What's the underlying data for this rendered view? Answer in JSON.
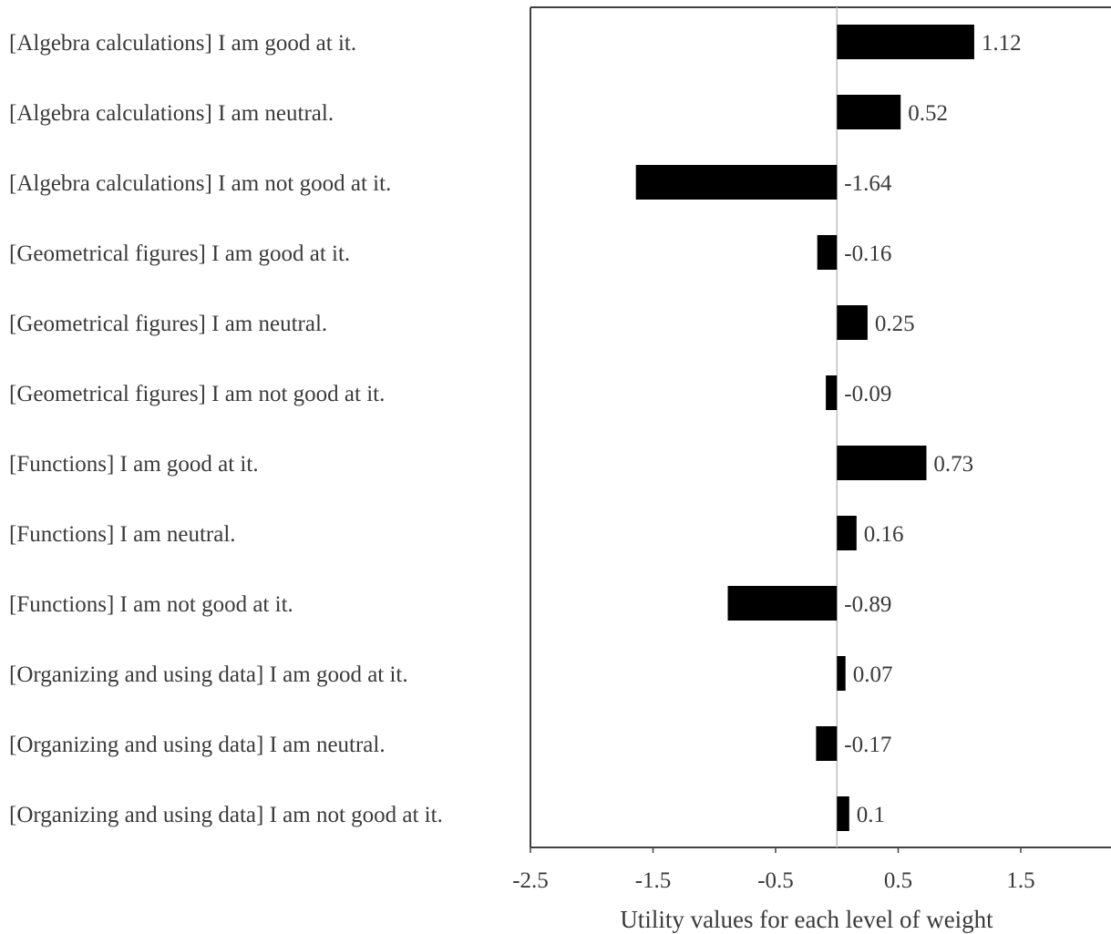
{
  "chart_data": {
    "type": "bar",
    "orientation": "horizontal",
    "categories": [
      "[Algebra calculations] I am good at it.",
      "[Algebra calculations] I am neutral.",
      "[Algebra calculations] I am not good at it.",
      "[Geometrical figures] I am good at it.",
      "[Geometrical figures] I am neutral.",
      "[Geometrical figures] I am not good at it.",
      "[Functions] I am good at it.",
      "[Functions] I am neutral.",
      "[Functions] I am not good at it.",
      "[Organizing and using data] I am good at it.",
      "[Organizing and using data] I am neutral.",
      "[Organizing and using data] I am not good at it."
    ],
    "values": [
      1.12,
      0.52,
      -1.64,
      -0.16,
      0.25,
      -0.09,
      0.73,
      0.16,
      -0.89,
      0.07,
      -0.17,
      0.1
    ],
    "value_labels": [
      "1.12",
      "0.52",
      "-1.64",
      "-0.16",
      "0.25",
      "-0.09",
      "0.73",
      "0.16",
      "-0.89",
      "0.07",
      "-0.17",
      "0.1"
    ],
    "title": "",
    "xlabel": "Utility values for each level of weight",
    "ylabel": "",
    "xlim": [
      -2.5,
      2.5
    ],
    "xticks": [
      -2.5,
      -1.5,
      -0.5,
      0.5,
      1.5
    ],
    "xtick_labels": [
      "-2.5",
      "-1.5",
      "-0.5",
      "0.5",
      "1.5"
    ],
    "grid": false,
    "legend": "none",
    "colors": {
      "bar": "#000000",
      "zero_line": "#bfbfbf",
      "frame": "#404040",
      "text": "#3a3a3a"
    }
  }
}
